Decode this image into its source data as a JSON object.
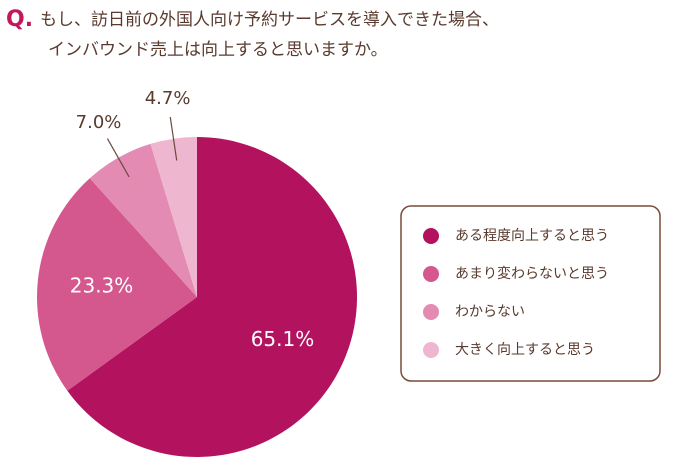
{
  "chart_data": {
    "type": "pie",
    "title_marker": "Q.",
    "title": [
      "もし、訪日前の外国人向け予約サービスを導入できた場合、",
      "インバウンド売上は向上すると思いますか。"
    ],
    "categories": [
      "ある程度向上すると思う",
      "あまり変わらないと思う",
      "わからない",
      "大きく向上すると思う"
    ],
    "values": [
      65.1,
      23.3,
      7.0,
      4.7
    ],
    "value_labels": [
      "65.1%",
      "23.3%",
      "7.0%",
      "4.7%"
    ],
    "colors": [
      "#b3125f",
      "#d4578e",
      "#e38bb2",
      "#efb6d0"
    ]
  }
}
